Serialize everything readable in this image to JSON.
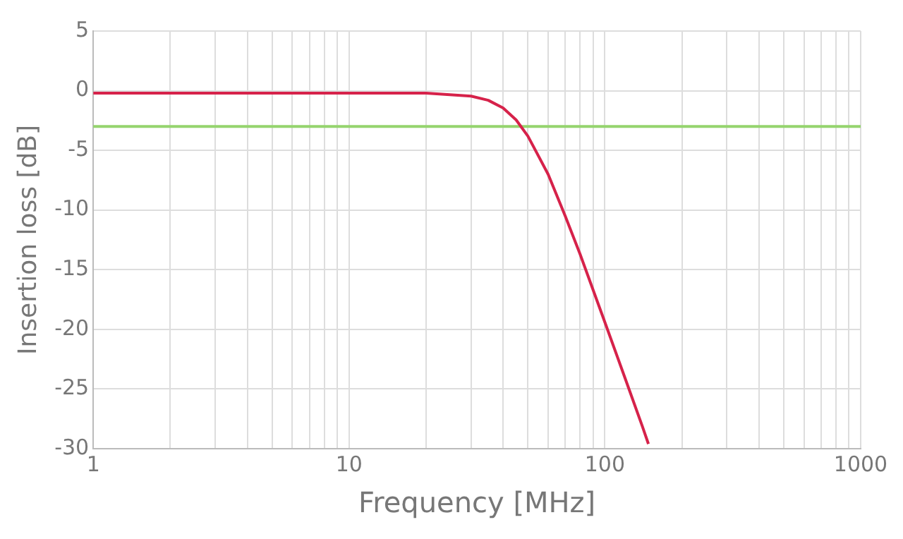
{
  "chart_data": {
    "type": "line",
    "xlabel": "Frequency [MHz]",
    "ylabel": "Insertion loss [dB]",
    "log": "x",
    "x": [
      1,
      5,
      10,
      20,
      30,
      35,
      40,
      45,
      50,
      60,
      70,
      80,
      100,
      120,
      140,
      148
    ],
    "series": [
      {
        "color": "#d6224a",
        "values": [
          -0.2,
          -0.2,
          -0.2,
          -0.2,
          -0.45,
          -0.8,
          -1.45,
          -2.45,
          -3.8,
          -7.0,
          -10.5,
          -13.7,
          -19.4,
          -24.1,
          -28.1,
          -29.6
        ]
      }
    ],
    "xlim": [
      1,
      1000
    ],
    "xticks": [
      1,
      {
        "value": 2,
        "label": null
      },
      {
        "value": 3,
        "label": null
      },
      {
        "value": 4,
        "label": null
      },
      {
        "value": 5,
        "label": null
      },
      {
        "value": 6,
        "label": null
      },
      {
        "value": 7,
        "label": null
      },
      {
        "value": 8,
        "label": null
      },
      {
        "value": 9,
        "label": null
      },
      10,
      {
        "value": 20,
        "label": null
      },
      {
        "value": 30,
        "label": null
      },
      {
        "value": 40,
        "label": null
      },
      {
        "value": 50,
        "label": null
      },
      {
        "value": 60,
        "label": null
      },
      {
        "value": 70,
        "label": null
      },
      {
        "value": 80,
        "label": null
      },
      {
        "value": 90,
        "label": null
      },
      100,
      {
        "value": 200,
        "label": null
      },
      {
        "value": 300,
        "label": null
      },
      {
        "value": 400,
        "label": null
      },
      {
        "value": 500,
        "label": null
      },
      {
        "value": 600,
        "label": null
      },
      {
        "value": 700,
        "label": null
      },
      {
        "value": 800,
        "label": null
      },
      {
        "value": 900,
        "label": null
      },
      1000
    ],
    "ylim": [
      -30,
      5
    ],
    "yticks": [
      -30,
      -25,
      -20,
      -15,
      -10,
      -5,
      0,
      5
    ],
    "ref_lines": [
      {
        "axis": "y",
        "value": -3,
        "color": "#95d46e"
      }
    ],
    "grid": true,
    "legend": false,
    "marker": "none",
    "line_style": "solid"
  }
}
